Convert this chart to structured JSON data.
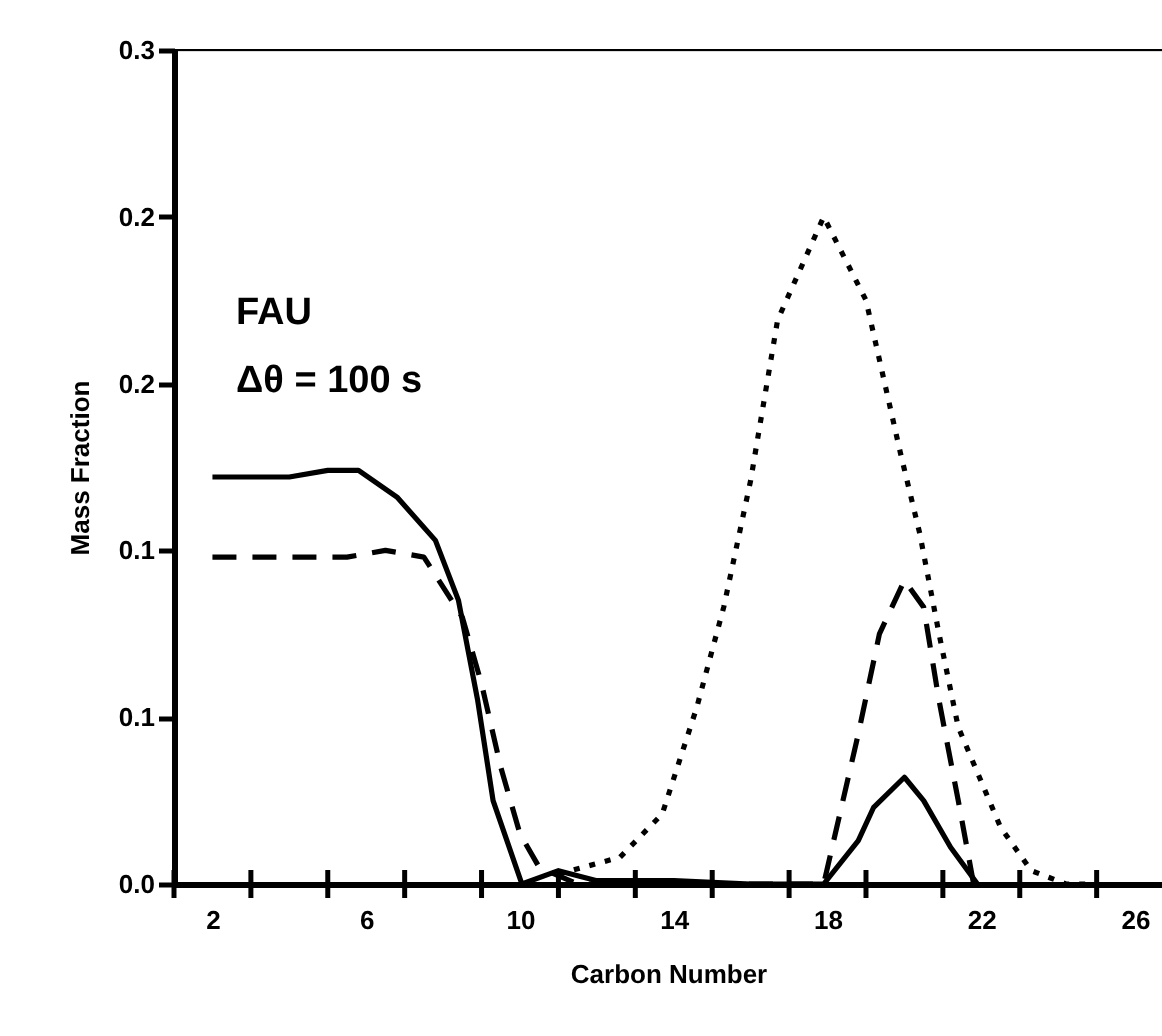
{
  "chart_data": {
    "type": "line",
    "xlabel": "Carbon Number",
    "ylabel": "Mass Fraction",
    "annotations": [
      "FAU",
      "Δθ = 100 s"
    ],
    "xlim": [
      1,
      26.7
    ],
    "xticks": [
      {
        "value": 1,
        "label": null
      },
      2,
      {
        "value": 3,
        "label": null
      },
      {
        "value": 5,
        "label": null
      },
      6,
      {
        "value": 7,
        "label": null
      },
      {
        "value": 9,
        "label": null
      },
      10,
      {
        "value": 11,
        "label": null
      },
      {
        "value": 13,
        "label": null
      },
      14,
      {
        "value": 15,
        "label": null
      },
      {
        "value": 17,
        "label": null
      },
      18,
      {
        "value": 19,
        "label": null
      },
      {
        "value": 21,
        "label": null
      },
      22,
      {
        "value": 23,
        "label": null
      },
      {
        "value": 25,
        "label": null
      },
      26
    ],
    "ylim": [
      0,
      0.25
    ],
    "yticks": [
      {
        "value": 0,
        "label": "0.0"
      },
      {
        "value": 0.05,
        "label": "0.1"
      },
      {
        "value": 0.1,
        "label": "0.1"
      },
      {
        "value": 0.15,
        "label": "0.2"
      },
      {
        "value": 0.2,
        "label": "0.2"
      },
      {
        "value": 0.25,
        "label": "0.3"
      }
    ],
    "grid": false,
    "marker": "none",
    "series": [
      {
        "color": "#000000",
        "line_style": "solid",
        "x": [
          2,
          4,
          5,
          5.8,
          6.8,
          7.8,
          8.4,
          8.9,
          9.3,
          10.05,
          11,
          12,
          14,
          16,
          17.9,
          18.8,
          19.2,
          20,
          20.5,
          21.2,
          21.9
        ],
        "values": [
          0.122,
          0.122,
          0.124,
          0.124,
          0.116,
          0.103,
          0.085,
          0.055,
          0.025,
          0,
          0.004,
          0.001,
          0.001,
          0,
          0,
          0.013,
          0.023,
          0.032,
          0.025,
          0.011,
          0
        ]
      },
      {
        "color": "#000000",
        "line_style": "dashed",
        "x": [
          2,
          5.5,
          6.5,
          7.5,
          8.5,
          9,
          9.5,
          10,
          10.5,
          11.5,
          17.9,
          18.8,
          19.35,
          20,
          20.5,
          20.9,
          21.4,
          21.8
        ],
        "values": [
          0.098,
          0.098,
          0.1,
          0.098,
          0.08,
          0.06,
          0.035,
          0.015,
          0.005,
          0,
          0,
          0.045,
          0.075,
          0.091,
          0.083,
          0.055,
          0.025,
          0
        ]
      },
      {
        "color": "#000000",
        "line_style": "dotted",
        "x": [
          11,
          12.6,
          13.7,
          14.6,
          15.3,
          16,
          16.7,
          17.9,
          19,
          19.9,
          20.4,
          20.9,
          21.4,
          22.5,
          23.3,
          24.2,
          25
        ],
        "values": [
          0.003,
          0.008,
          0.021,
          0.053,
          0.083,
          0.121,
          0.169,
          0.2,
          0.175,
          0.129,
          0.105,
          0.075,
          0.047,
          0.017,
          0.004,
          0,
          0
        ]
      }
    ]
  }
}
